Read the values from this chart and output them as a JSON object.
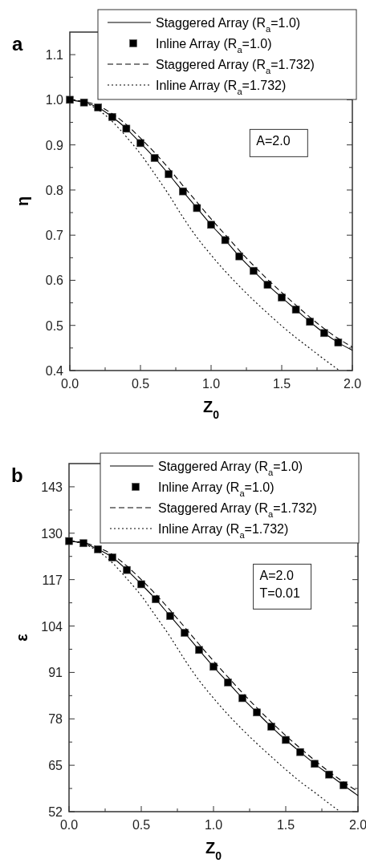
{
  "chart_data": [
    {
      "type": "line",
      "title": "a",
      "xlabel": "Z$_{0}$",
      "ylabel": "η",
      "xlim": [
        0,
        2
      ],
      "ylim": [
        0.4,
        1.15
      ],
      "xticks": [
        {
          "value": 0,
          "label": "0.0"
        },
        {
          "value": 0.25,
          "label": null
        },
        {
          "value": 0.5,
          "label": "0.5"
        },
        {
          "value": 0.75,
          "label": null
        },
        {
          "value": 1,
          "label": "1.0"
        },
        {
          "value": 1.25,
          "label": null
        },
        {
          "value": 1.5,
          "label": "1.5"
        },
        {
          "value": 1.75,
          "label": null
        },
        {
          "value": 2,
          "label": "2.0"
        }
      ],
      "yticks": [
        0.4,
        {
          "value": 0.45,
          "label": null
        },
        0.5,
        {
          "value": 0.55,
          "label": null
        },
        0.6,
        {
          "value": 0.65,
          "label": null
        },
        0.7,
        {
          "value": 0.75,
          "label": null
        },
        0.8,
        {
          "value": 0.85,
          "label": null
        },
        0.9,
        {
          "value": 0.95,
          "label": null
        },
        {
          "value": 1,
          "label": "1.0"
        },
        {
          "value": 1.05,
          "label": null
        },
        1.1
      ],
      "legend": "top",
      "annotations": [
        "A=2.0"
      ],
      "series": [
        {
          "name": "Staggered Array (R$_{a}$=1.0)",
          "type": "line",
          "line_style": "solid",
          "color": "#000000",
          "x": [
            0,
            0.1,
            0.2,
            0.3,
            0.4,
            0.5,
            0.6,
            0.7,
            0.8,
            0.9,
            1.0,
            1.1,
            1.2,
            1.3,
            1.4,
            1.5,
            1.6,
            1.7,
            1.8,
            1.9,
            2.0
          ],
          "values": [
            1.0,
            0.994,
            0.983,
            0.962,
            0.936,
            0.904,
            0.871,
            0.835,
            0.797,
            0.76,
            0.723,
            0.689,
            0.653,
            0.621,
            0.59,
            0.562,
            0.535,
            0.508,
            0.483,
            0.462,
            0.445
          ]
        },
        {
          "name": "Inline Array (R$_{a}$=1.0)",
          "type": "scatter",
          "marker": "square",
          "color": "#000000",
          "x": [
            0,
            0.1,
            0.2,
            0.3,
            0.4,
            0.5,
            0.6,
            0.7,
            0.8,
            0.9,
            1.0,
            1.1,
            1.2,
            1.3,
            1.4,
            1.5,
            1.6,
            1.7,
            1.8,
            1.9
          ],
          "values": [
            1.0,
            0.994,
            0.983,
            0.962,
            0.936,
            0.904,
            0.871,
            0.835,
            0.797,
            0.76,
            0.723,
            0.689,
            0.653,
            0.621,
            0.59,
            0.562,
            0.535,
            0.508,
            0.483,
            0.462
          ]
        },
        {
          "name": "Staggered Array (R$_{a}$=1.732)",
          "type": "line",
          "line_style": "dashed",
          "color": "#000000",
          "x": [
            0,
            0.1,
            0.2,
            0.3,
            0.4,
            0.5,
            0.6,
            0.7,
            0.8,
            0.9,
            1.0,
            1.1,
            1.2,
            1.3,
            1.4,
            1.5,
            1.6,
            1.7,
            1.8,
            1.9,
            2.0
          ],
          "values": [
            1.0,
            0.996,
            0.987,
            0.969,
            0.945,
            0.915,
            0.883,
            0.848,
            0.81,
            0.773,
            0.736,
            0.701,
            0.666,
            0.633,
            0.602,
            0.573,
            0.545,
            0.518,
            0.493,
            0.471,
            0.452
          ]
        },
        {
          "name": "Inline Array (R$_{a}$=1.732)",
          "type": "line",
          "line_style": "dotted",
          "color": "#000000",
          "x": [
            0,
            0.1,
            0.2,
            0.3,
            0.4,
            0.5,
            0.6,
            0.7,
            0.8,
            0.9,
            1.0,
            1.1,
            1.2,
            1.3,
            1.4,
            1.5,
            1.6,
            1.7,
            1.8,
            1.9
          ],
          "values": [
            1.0,
            0.994,
            0.978,
            0.952,
            0.918,
            0.88,
            0.836,
            0.79,
            0.74,
            0.695,
            0.656,
            0.62,
            0.587,
            0.556,
            0.527,
            0.499,
            0.473,
            0.449,
            0.425,
            0.402
          ]
        }
      ]
    },
    {
      "type": "line",
      "title": "b",
      "xlabel": "Z$_{0}$",
      "ylabel": "ε",
      "xlim": [
        0,
        2
      ],
      "ylim": [
        52,
        149.5
      ],
      "xticks": [
        {
          "value": 0,
          "label": "0.0"
        },
        {
          "value": 0.25,
          "label": null
        },
        {
          "value": 0.5,
          "label": "0.5"
        },
        {
          "value": 0.75,
          "label": null
        },
        {
          "value": 1,
          "label": "1.0"
        },
        {
          "value": 1.25,
          "label": null
        },
        {
          "value": 1.5,
          "label": "1.5"
        },
        {
          "value": 1.75,
          "label": null
        },
        {
          "value": 2,
          "label": "2.0"
        }
      ],
      "yticks": [
        52,
        {
          "value": 58.5,
          "label": null
        },
        65,
        {
          "value": 71.5,
          "label": null
        },
        78,
        {
          "value": 84.5,
          "label": null
        },
        91,
        {
          "value": 97.5,
          "label": null
        },
        104,
        {
          "value": 110.5,
          "label": null
        },
        117,
        {
          "value": 123.5,
          "label": null
        },
        130,
        {
          "value": 136.5,
          "label": null
        },
        143
      ],
      "legend": "top",
      "annotations": [
        "A=2.0",
        "T=0.01"
      ],
      "series": [
        {
          "name": "Staggered Array (R$_{a}$=1.0)",
          "type": "line",
          "line_style": "solid",
          "color": "#000000",
          "x": [
            0,
            0.1,
            0.2,
            0.3,
            0.4,
            0.5,
            0.6,
            0.7,
            0.8,
            0.9,
            1.0,
            1.1,
            1.2,
            1.3,
            1.4,
            1.5,
            1.6,
            1.7,
            1.8,
            1.9,
            2.0
          ],
          "values": [
            127.8,
            127.2,
            125.5,
            123.2,
            119.7,
            115.7,
            111.5,
            106.8,
            102.1,
            97.3,
            92.6,
            88.2,
            83.8,
            79.8,
            75.8,
            72.1,
            68.7,
            65.4,
            62.4,
            59.4,
            56.5
          ]
        },
        {
          "name": "Inline Array (R$_{a}$=1.0)",
          "type": "scatter",
          "marker": "square",
          "color": "#000000",
          "x": [
            0,
            0.1,
            0.2,
            0.3,
            0.4,
            0.5,
            0.6,
            0.7,
            0.8,
            0.9,
            1.0,
            1.1,
            1.2,
            1.3,
            1.4,
            1.5,
            1.6,
            1.7,
            1.8,
            1.9
          ],
          "values": [
            127.8,
            127.2,
            125.5,
            123.2,
            119.7,
            115.7,
            111.5,
            106.8,
            102.1,
            97.3,
            92.6,
            88.2,
            83.8,
            79.8,
            75.8,
            72.1,
            68.7,
            65.4,
            62.4,
            59.4
          ]
        },
        {
          "name": "Staggered Array (R$_{a}$=1.732)",
          "type": "line",
          "line_style": "dashed",
          "color": "#000000",
          "x": [
            0,
            0.1,
            0.2,
            0.3,
            0.4,
            0.5,
            0.6,
            0.7,
            0.8,
            0.9,
            1.0,
            1.1,
            1.2,
            1.3,
            1.4,
            1.5,
            1.6,
            1.7,
            1.8,
            1.9,
            2.0
          ],
          "values": [
            127.8,
            127.4,
            126.0,
            124.0,
            120.8,
            117.0,
            112.9,
            108.4,
            103.7,
            98.9,
            94.2,
            89.7,
            85.3,
            81.1,
            77.1,
            73.3,
            69.8,
            66.4,
            63.2,
            60.3,
            57.6
          ]
        },
        {
          "name": "Inline Array (R$_{a}$=1.732)",
          "type": "line",
          "line_style": "dotted",
          "color": "#000000",
          "x": [
            0,
            0.1,
            0.2,
            0.3,
            0.4,
            0.5,
            0.6,
            0.7,
            0.8,
            0.9,
            1.0,
            1.1,
            1.2,
            1.3,
            1.4,
            1.5,
            1.6,
            1.7,
            1.8,
            1.87
          ],
          "values": [
            127.8,
            127.0,
            125.0,
            121.7,
            117.3,
            112.5,
            106.8,
            101.0,
            94.6,
            88.8,
            83.8,
            79.2,
            75.0,
            71.1,
            67.4,
            63.8,
            60.4,
            57.4,
            54.3,
            52.2
          ]
        }
      ]
    }
  ]
}
